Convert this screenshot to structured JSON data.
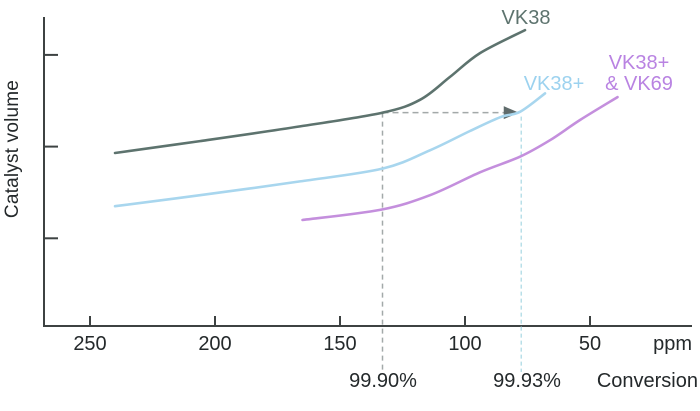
{
  "chart": {
    "y_axis_label": "Catalyst volume",
    "x_axis_unit": "ppm",
    "x_axis_secondary_label": "Conversion"
  },
  "series_labels": {
    "vk38": "VK38",
    "vk38_plus": "VK38+",
    "combo_line1": "VK38+",
    "combo_line2": "& VK69"
  },
  "colors": {
    "axis": "#3d4242",
    "text": "#24292b",
    "vk38_curve": "#5d736e",
    "vk38_label": "#5d736e",
    "vk38_plus_curve": "#a8d6ee",
    "vk38_plus_label": "#9cd2ef",
    "combo_curve": "#c48fdd",
    "combo_label": "#b983e2",
    "gray_dash": "#a3a9a9",
    "blue_dash": "#b8dfe8",
    "arrow": "#5f6b6b"
  },
  "chart_data": {
    "type": "line",
    "title": "",
    "ylabel": "Catalyst volume",
    "xlabel": "ppm",
    "x2label": "Conversion",
    "x_axis": {
      "ticks": [
        250,
        200,
        150,
        100,
        50
      ],
      "unit": "ppm",
      "reversed": true,
      "range": [
        265,
        10
      ]
    },
    "y_axis": {
      "ticks": [
        1,
        2,
        3
      ],
      "numeric_labels_shown": false,
      "unit": "relative catalyst volume"
    },
    "grid": false,
    "legend_position": "inline-curve-end-labels",
    "series": [
      {
        "name": "VK38",
        "color": "#5d736e",
        "points_ppm_vol": [
          [
            240,
            1.93
          ],
          [
            206,
            2.06
          ],
          [
            166,
            2.22
          ],
          [
            133,
            2.37
          ],
          [
            118,
            2.51
          ],
          [
            106,
            2.76
          ],
          [
            94,
            3.02
          ],
          [
            76,
            3.27
          ]
        ]
      },
      {
        "name": "VK38+",
        "color": "#a8d6ee",
        "points_ppm_vol": [
          [
            240,
            1.35
          ],
          [
            206,
            1.47
          ],
          [
            166,
            1.62
          ],
          [
            133,
            1.76
          ],
          [
            114,
            1.96
          ],
          [
            98,
            2.17
          ],
          [
            86,
            2.32
          ],
          [
            78,
            2.38
          ],
          [
            68,
            2.58
          ]
        ]
      },
      {
        "name": "VK38+ & VK69",
        "color": "#c48fdd",
        "points_ppm_vol": [
          [
            165,
            1.2
          ],
          [
            134,
            1.31
          ],
          [
            114,
            1.47
          ],
          [
            94,
            1.72
          ],
          [
            78,
            1.89
          ],
          [
            66,
            2.07
          ],
          [
            54,
            2.29
          ],
          [
            39,
            2.54
          ]
        ]
      }
    ],
    "annotations": {
      "baseline": {
        "ppm": 133,
        "conversion_label": "99.90%"
      },
      "improved": {
        "ppm": 77.5,
        "conversion_label": "99.93%"
      },
      "arrow": {
        "from_ppm": 133,
        "to_ppm": 78.5,
        "vol": 2.37
      }
    }
  }
}
